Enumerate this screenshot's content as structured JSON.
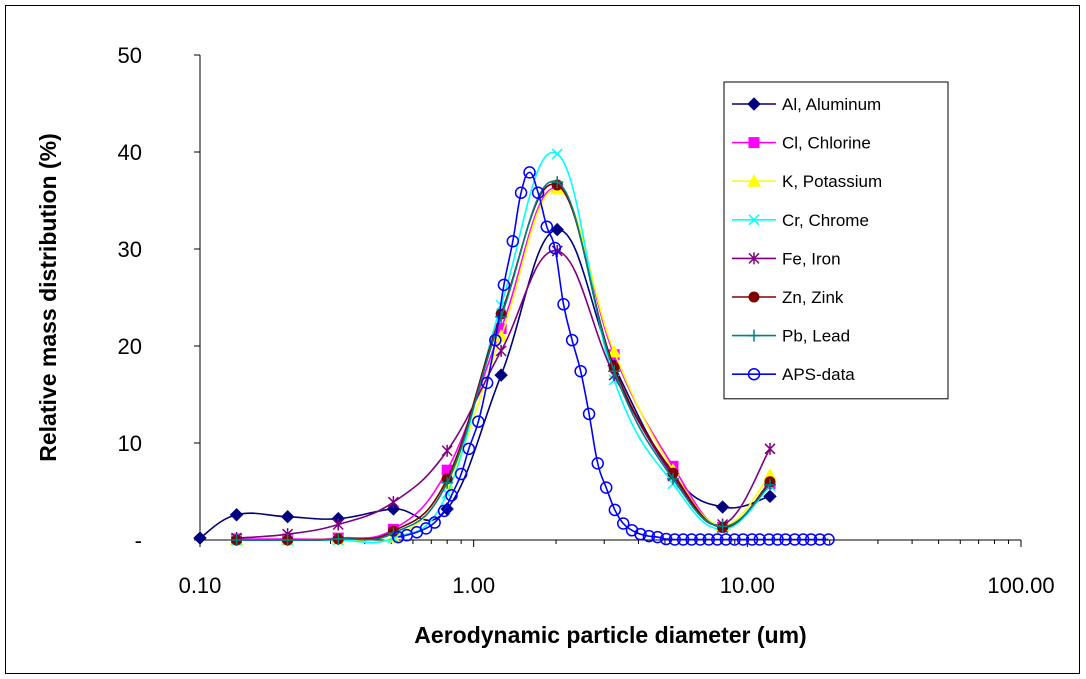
{
  "chart_data": {
    "type": "line",
    "title": "",
    "xlabel": "Aerodynamic particle diameter (um)",
    "ylabel": "Relative mass distribution (%)",
    "x_scale": "log",
    "xlim": [
      0.1,
      100
    ],
    "ylim": [
      0,
      50
    ],
    "x_ticks": [
      0.1,
      1,
      10,
      100
    ],
    "x_tick_labels": [
      "0.10",
      "1.00",
      "10.00",
      "100.00"
    ],
    "y_ticks": [
      0,
      10,
      20,
      30,
      40,
      50
    ],
    "y_tick_labels": [
      "-",
      "10",
      "20",
      "30",
      "40",
      "50"
    ],
    "grid": false,
    "legend_position": "top-right",
    "series": [
      {
        "name": "Al, Aluminum",
        "color": "#000080",
        "marker": "diamond",
        "x": [
          0.1,
          0.136,
          0.209,
          0.32,
          0.509,
          0.8,
          1.26,
          2.02,
          3.26,
          5.35,
          8.12,
          12.1
        ],
        "y": [
          0.2,
          2.6,
          2.4,
          2.2,
          3.2,
          3.2,
          17.0,
          32.0,
          18.0,
          6.8,
          3.4,
          4.5
        ]
      },
      {
        "name": "Cl, Chlorine",
        "color": "#ff00ff",
        "marker": "square",
        "x": [
          0.136,
          0.209,
          0.32,
          0.509,
          0.8,
          1.26,
          2.02,
          3.26,
          5.35,
          8.12,
          12.1
        ],
        "y": [
          0.1,
          0.1,
          0.2,
          1.1,
          7.2,
          21.8,
          36.3,
          19.1,
          7.6,
          1.3,
          5.8
        ]
      },
      {
        "name": "K, Potassium",
        "color": "#ffff00",
        "marker": "triangle",
        "x": [
          0.136,
          0.209,
          0.32,
          0.509,
          0.8,
          1.26,
          2.02,
          3.26,
          5.35,
          8.12,
          12.1
        ],
        "y": [
          0.0,
          0.0,
          0.1,
          0.3,
          5.8,
          21.0,
          36.2,
          19.4,
          7.2,
          1.5,
          6.7
        ]
      },
      {
        "name": "Cr, Chrome",
        "color": "#00ffff",
        "marker": "x",
        "x": [
          0.136,
          0.209,
          0.32,
          0.509,
          0.8,
          1.26,
          2.02,
          3.26,
          5.35,
          8.12,
          12.1
        ],
        "y": [
          0.0,
          0.0,
          0.0,
          0.2,
          4.8,
          24.2,
          39.8,
          16.5,
          5.8,
          1.1,
          5.6
        ]
      },
      {
        "name": "Fe, Iron",
        "color": "#800080",
        "marker": "star",
        "x": [
          0.136,
          0.209,
          0.32,
          0.509,
          0.8,
          1.26,
          2.02,
          3.26,
          5.35,
          8.12,
          12.1
        ],
        "y": [
          0.2,
          0.6,
          1.6,
          3.9,
          9.2,
          19.5,
          29.8,
          17.0,
          6.6,
          1.6,
          9.4
        ]
      },
      {
        "name": "Zn, Zink",
        "color": "#800000",
        "marker": "circle",
        "x": [
          0.136,
          0.209,
          0.32,
          0.509,
          0.8,
          1.26,
          2.02,
          3.26,
          5.35,
          8.12,
          12.1
        ],
        "y": [
          0.0,
          0.0,
          0.1,
          0.9,
          6.3,
          23.3,
          36.6,
          17.8,
          6.9,
          1.3,
          6.0
        ]
      },
      {
        "name": "Pb, Lead",
        "color": "#008080",
        "marker": "plus",
        "x": [
          0.136,
          0.209,
          0.32,
          0.509,
          0.8,
          1.26,
          2.02,
          3.26,
          5.35,
          8.12,
          12.1
        ],
        "y": [
          0.0,
          0.0,
          0.1,
          0.7,
          5.9,
          23.0,
          36.9,
          17.4,
          6.3,
          1.4,
          5.7
        ]
      },
      {
        "name": "APS-data",
        "color": "#0000ff",
        "marker": "open-circle",
        "x": [
          0.53,
          0.57,
          0.62,
          0.67,
          0.72,
          0.78,
          0.83,
          0.9,
          0.96,
          1.04,
          1.12,
          1.2,
          1.29,
          1.39,
          1.49,
          1.6,
          1.72,
          1.85,
          1.98,
          2.13,
          2.29,
          2.46,
          2.64,
          2.84,
          3.05,
          3.28,
          3.52,
          3.79,
          4.07,
          4.37,
          4.7,
          5.05,
          5.43,
          5.83,
          6.26,
          6.73,
          7.23,
          7.77,
          8.35,
          8.98,
          9.65,
          10.4,
          11.1,
          12.0,
          12.9,
          13.8,
          14.9,
          16.0,
          17.1,
          18.4,
          19.8
        ],
        "y": [
          0.3,
          0.5,
          0.8,
          1.2,
          1.8,
          3.0,
          4.6,
          6.8,
          9.4,
          12.2,
          16.2,
          20.6,
          26.3,
          30.8,
          35.8,
          37.9,
          35.8,
          32.3,
          30.1,
          24.3,
          20.6,
          17.4,
          13.0,
          7.9,
          5.4,
          3.1,
          1.7,
          1.0,
          0.6,
          0.4,
          0.3,
          0.1,
          0.05,
          0.05,
          0.05,
          0.05,
          0.05,
          0.05,
          0.05,
          0.05,
          0.05,
          0.05,
          0.05,
          0.05,
          0.05,
          0.05,
          0.05,
          0.05,
          0.05,
          0.05,
          0.05
        ]
      }
    ]
  }
}
